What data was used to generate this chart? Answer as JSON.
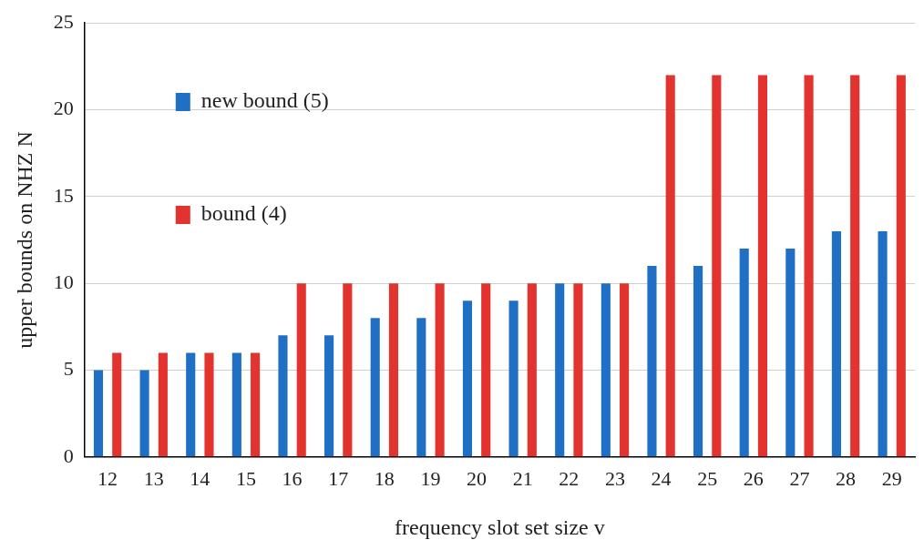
{
  "chart_data": {
    "type": "bar",
    "xlabel": "frequency slot set size v",
    "ylabel": "upper bounds on NHZ N",
    "categories": [
      "12",
      "13",
      "14",
      "15",
      "16",
      "17",
      "18",
      "19",
      "20",
      "21",
      "22",
      "23",
      "24",
      "25",
      "26",
      "27",
      "28",
      "29"
    ],
    "series": [
      {
        "name": "new bound (5)",
        "color": "#1f6fc4",
        "values": [
          5,
          5,
          6,
          6,
          7,
          7,
          8,
          8,
          9,
          9,
          10,
          10,
          11,
          11,
          12,
          12,
          13,
          13
        ]
      },
      {
        "name": "bound (4)",
        "color": "#e2332f",
        "values": [
          6,
          6,
          6,
          6,
          10,
          10,
          10,
          10,
          10,
          10,
          10,
          10,
          22,
          22,
          22,
          22,
          22,
          22
        ]
      }
    ],
    "ylim": [
      0,
      25
    ],
    "yticks": [
      0,
      5,
      10,
      15,
      20,
      25
    ],
    "grid": "y",
    "legend": "top left"
  }
}
